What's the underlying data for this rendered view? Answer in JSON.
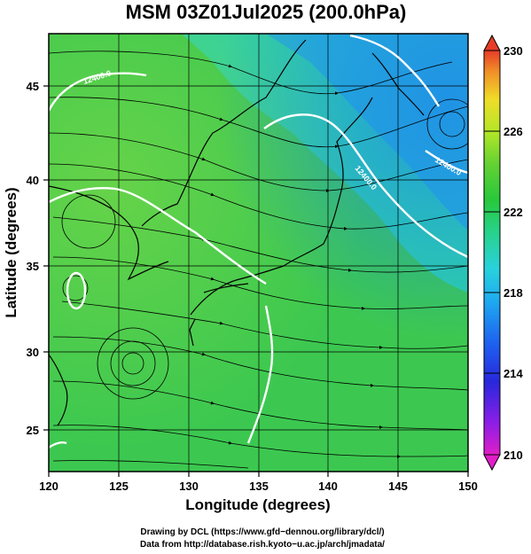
{
  "title": "MSM 03Z01Jul2025 (200.0hPa)",
  "chart_data": {
    "type": "map",
    "title": "MSM 03Z01Jul2025 (200.0hPa)",
    "xlabel": "Longitude (degrees)",
    "ylabel": "Latitude  (degrees)",
    "xlim": [
      120,
      150
    ],
    "ylim": [
      22.4,
      47.6
    ],
    "x_ticks": [
      "120",
      "125",
      "130",
      "135",
      "140",
      "145",
      "150"
    ],
    "y_ticks": [
      "25",
      "30",
      "35",
      "40",
      "45"
    ],
    "grid": true,
    "field": "temperature (shaded) with wind streamlines",
    "colorbar": {
      "min": 210,
      "max": 230,
      "ticks": [
        "210",
        "214",
        "218",
        "222",
        "226",
        "230"
      ]
    },
    "contours": [
      {
        "label": "12400.0"
      },
      {
        "label": "12400.0"
      },
      {
        "label": "12400.0"
      }
    ],
    "colors": {
      "cold": "#1a78e6",
      "cyan": "#22c8e6",
      "green": "#3cc850",
      "yellow_green": "#8cdc3c"
    }
  },
  "credits": {
    "line1": "Drawing by DCL (https://www.gfd−dennou.org/library/dcl/)",
    "line2": "Data from http://database.rish.kyoto−u.ac.jp/arch/jmadata/"
  }
}
